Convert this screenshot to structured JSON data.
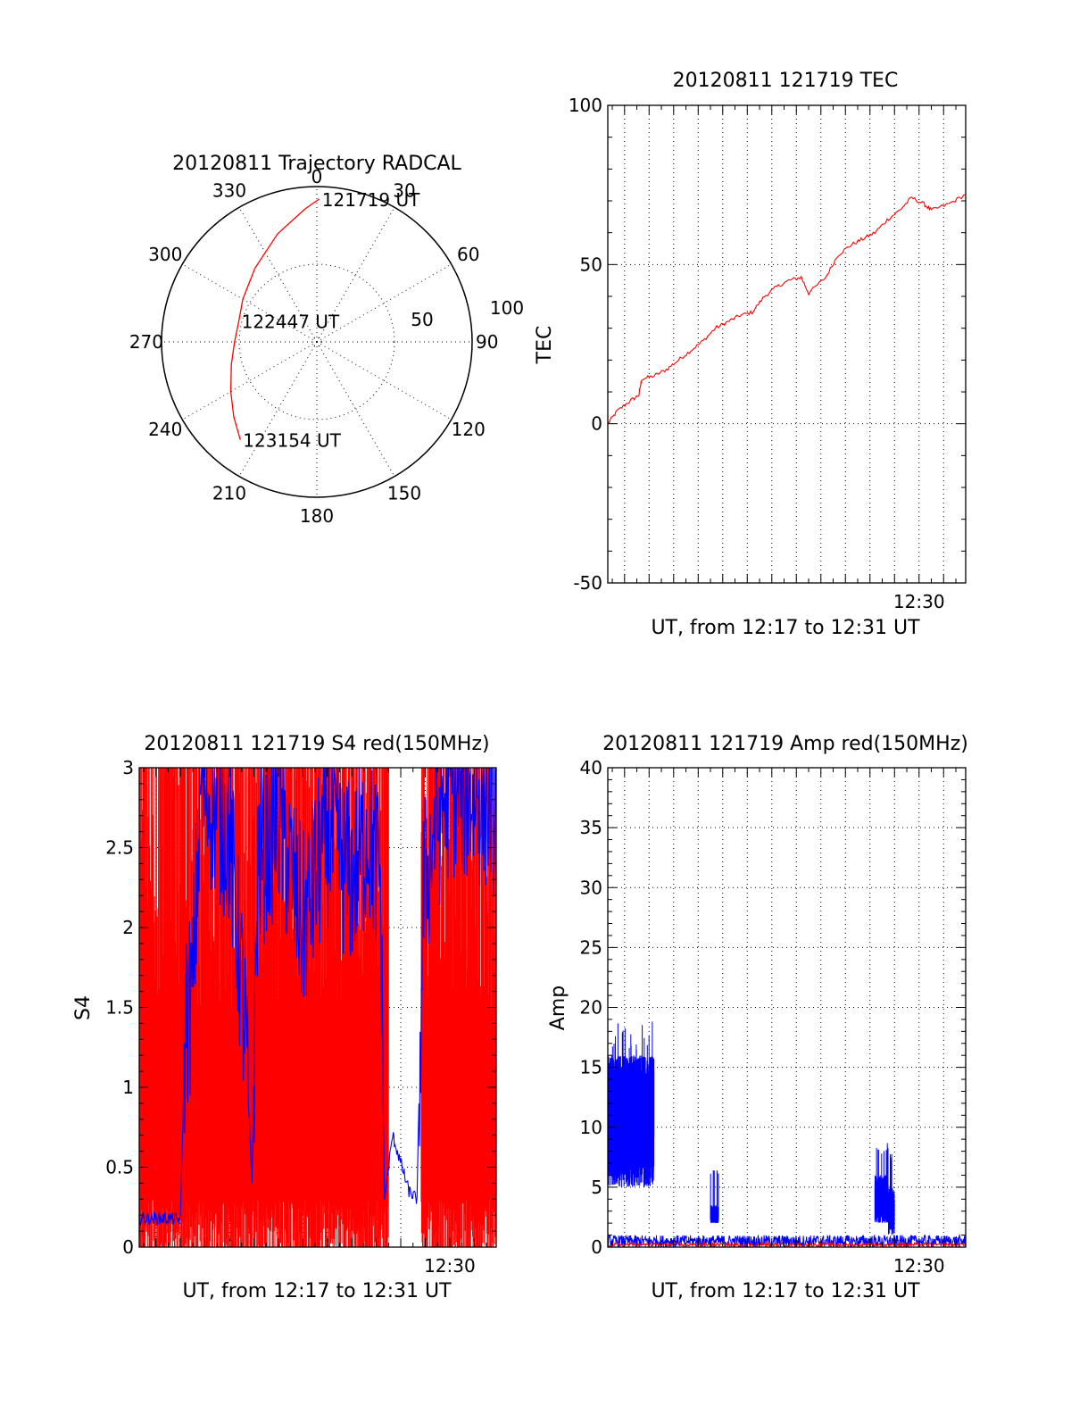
{
  "chart_data": [
    {
      "id": "trajectory",
      "type": "polar",
      "title": "20120811 Trajectory RADCAL",
      "azimuth_labels": [
        "0",
        "30",
        "60",
        "90",
        "120",
        "150",
        "180",
        "210",
        "240",
        "270",
        "300",
        "330"
      ],
      "radial_labels": [
        "50",
        "100"
      ],
      "radial_range": [
        0,
        100
      ],
      "track_color": "#ff0000",
      "track": [
        {
          "az": 1,
          "r": 92
        },
        {
          "az": 355,
          "r": 86
        },
        {
          "az": 340,
          "r": 74
        },
        {
          "az": 320,
          "r": 62
        },
        {
          "az": 300,
          "r": 55
        },
        {
          "az": 285,
          "r": 52
        },
        {
          "az": 270,
          "r": 53
        },
        {
          "az": 255,
          "r": 57
        },
        {
          "az": 240,
          "r": 64
        },
        {
          "az": 228,
          "r": 72
        },
        {
          "az": 218,
          "r": 80
        }
      ],
      "annotations": [
        {
          "text": "121719 UT",
          "az": 1,
          "r": 92
        },
        {
          "text": "122447 UT",
          "az": 285,
          "r": 52
        },
        {
          "text": "123154 UT",
          "az": 218,
          "r": 80
        }
      ]
    },
    {
      "id": "tec",
      "type": "line",
      "title": "20120811 121719 TEC",
      "ylabel": "TEC",
      "xlabel": "UT, from 12:17 to 12:31 UT",
      "xlim": [
        "12:17:19",
        "12:31:54"
      ],
      "ylim": [
        -50,
        100
      ],
      "yticks": [
        "-50",
        "0",
        "50",
        "100"
      ],
      "xtick_labels": [
        {
          "time": "12:30:00",
          "label": "12:30"
        }
      ],
      "grid": true,
      "series": [
        {
          "color": "#ff0000",
          "points": [
            [
              "12:17:19",
              0
            ],
            [
              "12:17:42",
              4
            ],
            [
              "12:18:12",
              7
            ],
            [
              "12:18:35",
              9
            ],
            [
              "12:18:42",
              14
            ],
            [
              "12:19:12",
              15
            ],
            [
              "12:19:42",
              17
            ],
            [
              "12:20:12",
              20
            ],
            [
              "12:20:42",
              23
            ],
            [
              "12:21:12",
              26
            ],
            [
              "12:21:42",
              30
            ],
            [
              "12:22:12",
              32
            ],
            [
              "12:22:42",
              34
            ],
            [
              "12:23:12",
              35
            ],
            [
              "12:23:42",
              40
            ],
            [
              "12:24:12",
              43
            ],
            [
              "12:24:42",
              45
            ],
            [
              "12:25:12",
              46
            ],
            [
              "12:25:30",
              41
            ],
            [
              "12:26:12",
              46
            ],
            [
              "12:26:42",
              53
            ],
            [
              "12:27:12",
              56
            ],
            [
              "12:27:42",
              58
            ],
            [
              "12:28:12",
              60
            ],
            [
              "12:28:42",
              64
            ],
            [
              "12:29:12",
              67
            ],
            [
              "12:29:42",
              71
            ],
            [
              "12:30:12",
              69
            ],
            [
              "12:30:30",
              67
            ],
            [
              "12:31:12",
              69
            ],
            [
              "12:31:54",
              72
            ]
          ]
        }
      ]
    },
    {
      "id": "s4",
      "type": "line",
      "title": "20120811 121719 S4 red(150MHz)",
      "ylabel": "S4",
      "xlabel": "UT, from 12:17 to 12:31 UT",
      "xlim": [
        "12:17:19",
        "12:31:54"
      ],
      "ylim": [
        0,
        3
      ],
      "yticks": [
        "0",
        "0.5",
        "1",
        "1.5",
        "2",
        "2.5",
        "3"
      ],
      "xtick_labels": [
        {
          "time": "12:30:00",
          "label": "12:30"
        }
      ],
      "grid": true,
      "series": [
        {
          "color": "#ff0000",
          "style": "saturated-noise",
          "segments": [
            [
              "12:17:19",
              "12:27:30"
            ],
            [
              "12:28:50",
              "12:31:54"
            ]
          ]
        },
        {
          "color": "#0000ff",
          "points": [
            [
              "12:17:19",
              0.18
            ],
            [
              "12:18:30",
              0.18
            ],
            [
              "12:19:00",
              0.17
            ],
            [
              "12:19:12",
              1.4
            ],
            [
              "12:19:30",
              1.6
            ],
            [
              "12:19:50",
              2.9
            ],
            [
              "12:21:00",
              2.6
            ],
            [
              "12:21:40",
              1.3
            ],
            [
              "12:21:55",
              0.4
            ],
            [
              "12:22:10",
              2.4
            ],
            [
              "12:23:00",
              2.7
            ],
            [
              "12:24:00",
              2.0
            ],
            [
              "12:25:00",
              2.6
            ],
            [
              "12:26:00",
              2.3
            ],
            [
              "12:26:40",
              2.6
            ],
            [
              "12:27:10",
              2.3
            ],
            [
              "12:27:20",
              0.3
            ],
            [
              "12:27:40",
              0.7
            ],
            [
              "12:28:20",
              0.35
            ],
            [
              "12:28:40",
              0.3
            ],
            [
              "12:28:55",
              2.2
            ],
            [
              "12:29:20",
              2.6
            ],
            [
              "12:30:00",
              2.9
            ],
            [
              "12:31:54",
              2.8
            ]
          ]
        }
      ]
    },
    {
      "id": "amp",
      "type": "line",
      "title": "20120811 121719 Amp red(150MHz)",
      "ylabel": "Amp",
      "xlabel": "UT, from 12:17 to 12:31 UT",
      "xlim": [
        "12:17:19",
        "12:31:54"
      ],
      "ylim": [
        0,
        40
      ],
      "yticks": [
        "0",
        "5",
        "10",
        "15",
        "20",
        "25",
        "30",
        "35",
        "40"
      ],
      "xtick_labels": [
        {
          "time": "12:30:00",
          "label": "12:30"
        }
      ],
      "grid": true,
      "series": [
        {
          "color": "#0000ff",
          "bands": [
            {
              "from": "12:17:19",
              "to": "12:19:12",
              "low": 5,
              "high": 16
            },
            {
              "from": "12:21:30",
              "to": "12:21:50",
              "low": 2,
              "high": 3.5
            },
            {
              "from": "12:28:12",
              "to": "12:28:45",
              "low": 2,
              "high": 6
            },
            {
              "from": "12:28:45",
              "to": "12:29:00",
              "low": 1,
              "high": 5
            }
          ],
          "baseline": 0.5
        },
        {
          "color": "#ff0000",
          "baseline": 0.2
        }
      ]
    }
  ]
}
